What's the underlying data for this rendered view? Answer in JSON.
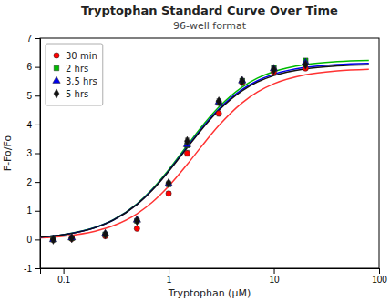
{
  "chart_data": {
    "type": "scatter",
    "title": "Tryptophan Standard Curve Over Time",
    "subtitle": "96-well format",
    "x_label": "Tryptophan (μM)",
    "y_label": "F-Fo/Fo",
    "log": "x",
    "xlim": [
      0.06,
      100
    ],
    "xticks": [
      0.1,
      1,
      10,
      100
    ],
    "ylim": [
      -1,
      7
    ],
    "yticks": [
      -1,
      0,
      1,
      2,
      3,
      4,
      5,
      6,
      7
    ],
    "grid": false,
    "legend": "upper left",
    "x": [
      0.08,
      0.12,
      0.25,
      0.5,
      1.0,
      1.5,
      3.0,
      5.0,
      10.0,
      20.0
    ],
    "series": [
      {
        "name": "30 min",
        "type": "scatter",
        "color": "#ff0000",
        "marker": "circle",
        "values": [
          0.0,
          0.03,
          0.12,
          0.38,
          1.6,
          3.0,
          4.38,
          5.45,
          5.82,
          5.95
        ],
        "error": [
          0.01,
          0.01,
          0.02,
          0.03,
          0.07,
          0.1,
          0.09,
          0.07,
          0.05,
          0.04
        ]
      },
      {
        "name": "2 hrs",
        "type": "scatter",
        "color": "#00bb00",
        "marker": "square",
        "values": [
          0.0,
          0.05,
          0.18,
          0.65,
          1.92,
          3.28,
          4.75,
          5.52,
          5.98,
          6.22
        ],
        "error": [
          0.01,
          0.01,
          0.02,
          0.03,
          0.06,
          0.08,
          0.07,
          0.06,
          0.05,
          0.04
        ]
      },
      {
        "name": "3.5 hrs",
        "type": "scatter",
        "color": "#0000ee",
        "marker": "triangle",
        "values": [
          0.0,
          0.06,
          0.2,
          0.68,
          1.94,
          3.3,
          4.78,
          5.52,
          5.94,
          6.15
        ],
        "error": [
          0.01,
          0.01,
          0.02,
          0.03,
          0.06,
          0.08,
          0.07,
          0.06,
          0.05,
          0.04
        ]
      },
      {
        "name": "5 hrs",
        "type": "scatter",
        "color": "#111111",
        "marker": "diamond",
        "values": [
          0.0,
          0.05,
          0.18,
          0.65,
          1.96,
          3.42,
          4.8,
          5.5,
          5.9,
          6.08
        ],
        "error": [
          0.01,
          0.01,
          0.02,
          0.03,
          0.07,
          0.1,
          0.09,
          0.07,
          0.05,
          0.04
        ]
      },
      {
        "type": "line",
        "color": "#ff3333",
        "line_style": "solid",
        "x": [
          0.06,
          0.1,
          0.2,
          0.3,
          0.5,
          0.7,
          1,
          1.5,
          2,
          3,
          5,
          7,
          10,
          20,
          40,
          80
        ],
        "values": [
          0.06,
          0.118,
          0.291,
          0.486,
          0.897,
          1.299,
          1.853,
          2.611,
          3.186,
          3.962,
          4.753,
          5.13,
          5.415,
          5.728,
          5.861,
          5.915
        ]
      },
      {
        "type": "line",
        "color": "#00bb00",
        "line_style": "solid",
        "x": [
          0.06,
          0.1,
          0.2,
          0.3,
          0.5,
          0.7,
          1,
          1.5,
          2,
          3,
          5,
          7,
          10,
          20,
          40,
          80
        ],
        "values": [
          0.088,
          0.172,
          0.421,
          0.694,
          1.246,
          1.761,
          2.427,
          3.27,
          3.863,
          4.604,
          5.3,
          5.611,
          5.839,
          6.082,
          6.183,
          6.224
        ]
      },
      {
        "type": "line",
        "color": "#0000ee",
        "line_style": "solid",
        "x": [
          0.06,
          0.1,
          0.2,
          0.3,
          0.5,
          0.7,
          1,
          1.5,
          2,
          3,
          5,
          7,
          10,
          20,
          40,
          80
        ],
        "values": [
          0.086,
          0.17,
          0.415,
          0.683,
          1.226,
          1.733,
          2.388,
          3.218,
          3.801,
          4.531,
          5.215,
          5.521,
          5.746,
          5.985,
          6.084,
          6.124
        ]
      },
      {
        "type": "line",
        "color": "#111111",
        "line_style": "solid",
        "x": [
          0.06,
          0.1,
          0.2,
          0.3,
          0.5,
          0.7,
          1,
          1.5,
          2,
          3,
          5,
          7,
          10,
          20,
          40,
          80
        ],
        "values": [
          0.086,
          0.168,
          0.411,
          0.678,
          1.216,
          1.719,
          2.369,
          3.192,
          3.77,
          4.494,
          5.172,
          5.476,
          5.699,
          5.936,
          6.035,
          6.074
        ]
      }
    ]
  }
}
